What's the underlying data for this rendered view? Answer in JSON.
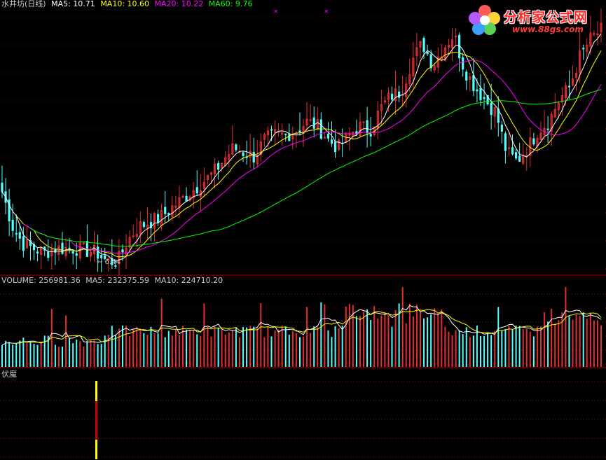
{
  "colors": {
    "background": "#000000",
    "grid": "#8b0000",
    "candle_up": "#e03030",
    "candle_down": "#54ffff",
    "ma5": "#ffffff",
    "ma10": "#ffff00",
    "ma20": "#ff00ff",
    "ma60": "#00ff00",
    "volume_label": "#c8c8c8",
    "signal_yellow": "#ffff00",
    "signal_red": "#cc0000"
  },
  "price_panel": {
    "title": "水井坊(日线)",
    "ma5_label": "MA5: 10.71",
    "ma10_label": "MA10: 10.60",
    "ma20_label": "MA20: 10.22",
    "ma60_label": "MA60: 9.76",
    "low_marker": "6.44"
  },
  "volume_panel": {
    "volume_label": "VOLUME: 256981.36",
    "ma5_label": "MA5: 232375.59",
    "ma10_label": "MA10: 224710.20"
  },
  "indicator_panel": {
    "name": "伏魔"
  },
  "logo": {
    "name": "分析家公式网",
    "url": "www.88gs.com"
  },
  "chart_data": {
    "type": "candlestick",
    "title": "水井坊(日线)",
    "low_annotation": 6.44,
    "moving_averages": {
      "MA5": 10.71,
      "MA10": 10.6,
      "MA20": 10.22,
      "MA60": 9.76
    },
    "close_series_approx": [
      8.2,
      7.4,
      7.0,
      6.9,
      6.8,
      6.9,
      6.9,
      6.9,
      6.85,
      6.8,
      6.6,
      6.6,
      7.1,
      7.4,
      7.5,
      7.6,
      7.8,
      8.0,
      8.2,
      8.4,
      8.6,
      8.9,
      9.2,
      9.1,
      9.0,
      9.4,
      9.5,
      9.5,
      9.6,
      9.8,
      9.7,
      9.4,
      9.2,
      9.5,
      9.7,
      9.6,
      10.1,
      10.4,
      10.5,
      11.2,
      11.6,
      11.1,
      11.5,
      11.8,
      11.0,
      10.6,
      10.3,
      10.0,
      9.1,
      8.9,
      9.2,
      9.6,
      9.8,
      10.3,
      10.6,
      11.3,
      11.7,
      11.9
    ],
    "volume": {
      "last": 256981.36,
      "ma5": 232375.59,
      "ma10": 224710.2
    },
    "indicator": {
      "name": "伏魔",
      "signals": [
        "yellow",
        "red",
        "yellow"
      ]
    }
  }
}
